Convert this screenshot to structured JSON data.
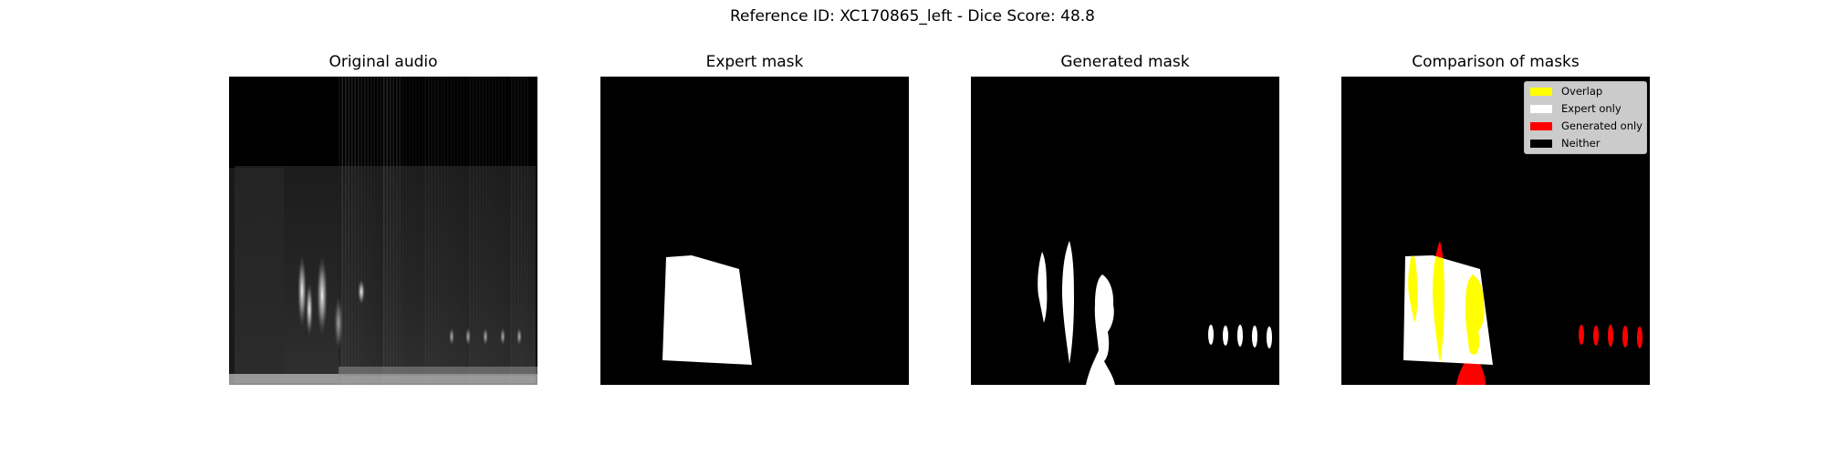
{
  "figure": {
    "suptitle": "Reference ID: XC170865_left - Dice Score: 48.8"
  },
  "chart_data": [
    {
      "type": "image",
      "title": "Original audio",
      "content": "grayscale spectrogram",
      "colors": {
        "background": "#000000",
        "signal": "#ffffff"
      }
    },
    {
      "type": "image",
      "title": "Expert mask",
      "content": "binary mask",
      "colors": {
        "background": "#000000",
        "mask": "#ffffff"
      }
    },
    {
      "type": "image",
      "title": "Generated mask",
      "content": "binary mask",
      "colors": {
        "background": "#000000",
        "mask": "#ffffff"
      }
    },
    {
      "type": "image",
      "title": "Comparison of masks",
      "content": "mask overlap",
      "legend": {
        "placement": "top-right",
        "items": [
          {
            "label": "Overlap",
            "color": "#ffff00"
          },
          {
            "label": "Expert only",
            "color": "#ffffff"
          },
          {
            "label": "Generated only",
            "color": "#ff0000"
          },
          {
            "label": "Neither",
            "color": "#000000"
          }
        ]
      }
    }
  ]
}
